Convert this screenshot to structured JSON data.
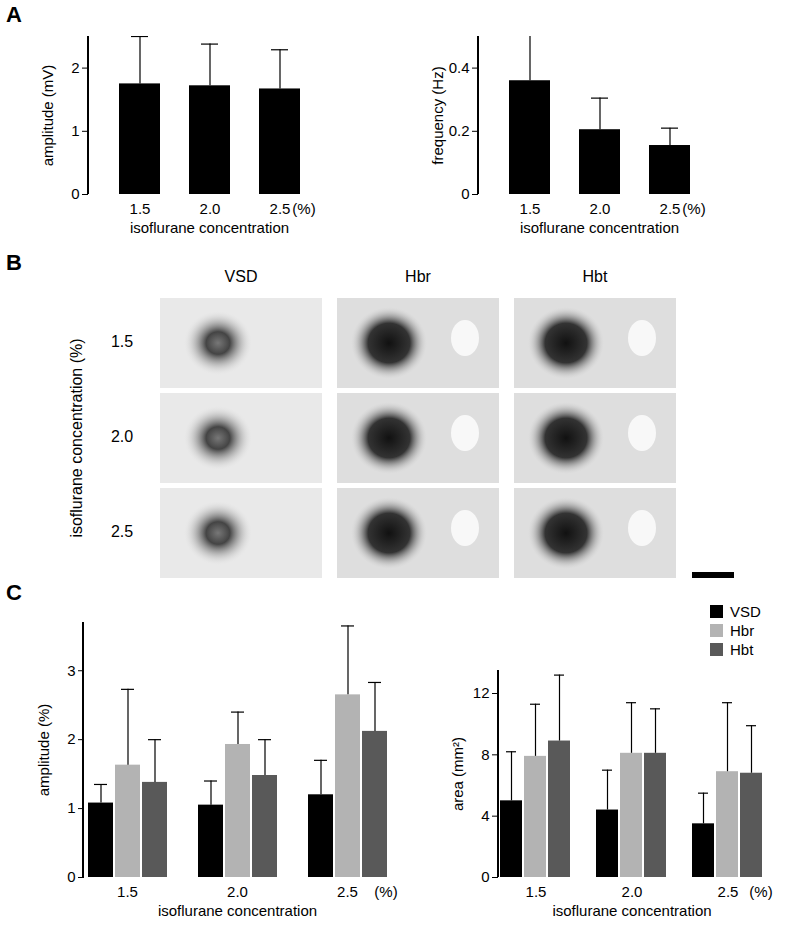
{
  "chart_data": [
    {
      "panel": "A",
      "type": "bar",
      "x_label": "isoflurane concentration",
      "annotation": "(%)",
      "y_label": "amplitude (mV)",
      "categories": [
        "1.5",
        "2.0",
        "2.5"
      ],
      "values": [
        1.75,
        1.72,
        1.67
      ],
      "errors": [
        0.75,
        0.66,
        0.62
      ],
      "color": "#000000",
      "ylim": [
        0,
        2.5
      ],
      "yticks": [
        0,
        1,
        2
      ]
    },
    {
      "type": "bar",
      "x_label": "isoflurane concentration",
      "annotation": "(%)",
      "y_label": "frequency (Hz)",
      "categories": [
        "1.5",
        "2.0",
        "2.5"
      ],
      "values": [
        0.36,
        0.205,
        0.155
      ],
      "errors": [
        0.15,
        0.1,
        0.055
      ],
      "color": "#000000",
      "ylim": [
        0,
        0.5
      ],
      "yticks": [
        0,
        0.2,
        0.4
      ]
    },
    {
      "panel": "B",
      "type": "image_grid",
      "columns": [
        "VSD",
        "Hbr",
        "Hbt"
      ],
      "rows": [
        "1.5",
        "2.0",
        "2.5"
      ],
      "row_label": "isoflurane concentration (%)"
    },
    {
      "panel": "C",
      "type": "bar",
      "x_label": "isoflurane concentration",
      "annotation": "(%)",
      "y_label": "amplitude (%)",
      "categories": [
        "1.5",
        "2.0",
        "2.5"
      ],
      "ylim": [
        0,
        3.7
      ],
      "yticks": [
        0,
        1,
        2,
        3
      ],
      "series": [
        {
          "name": "VSD",
          "color": "#000000",
          "values": [
            1.08,
            1.05,
            1.2
          ],
          "errors": [
            0.27,
            0.35,
            0.5
          ]
        },
        {
          "name": "Hbr",
          "color": "#b3b3b3",
          "values": [
            1.63,
            1.93,
            2.65
          ],
          "errors": [
            1.1,
            0.47,
            1.0
          ]
        },
        {
          "name": "Hbt",
          "color": "#595959",
          "values": [
            1.38,
            1.48,
            2.12
          ],
          "errors": [
            0.62,
            0.52,
            0.71
          ]
        }
      ]
    },
    {
      "type": "bar",
      "x_label": "isoflurane concentration",
      "annotation": "(%)",
      "y_label": "area (mm²)",
      "categories": [
        "1.5",
        "2.0",
        "2.5"
      ],
      "ylim": [
        0,
        13.5
      ],
      "yticks": [
        0,
        4,
        8,
        12
      ],
      "legend": "top-right",
      "series": [
        {
          "name": "VSD",
          "color": "#000000",
          "values": [
            5.0,
            4.4,
            3.5
          ],
          "errors": [
            3.2,
            2.6,
            2.0
          ]
        },
        {
          "name": "Hbr",
          "color": "#b3b3b3",
          "values": [
            7.9,
            8.1,
            6.9
          ],
          "errors": [
            3.4,
            3.3,
            4.5
          ]
        },
        {
          "name": "Hbt",
          "color": "#595959",
          "values": [
            8.9,
            8.1,
            6.8
          ],
          "errors": [
            4.3,
            2.9,
            3.1
          ]
        }
      ]
    }
  ]
}
